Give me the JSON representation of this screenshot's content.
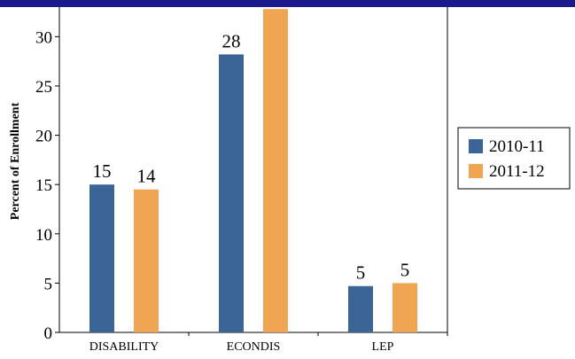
{
  "chart_data": {
    "type": "bar",
    "title": "",
    "xlabel": "",
    "ylabel": "Percent of Enrollment",
    "categories": [
      "DISABILITY",
      "ECONDIS",
      "LEP"
    ],
    "series": [
      {
        "name": "2010-11",
        "color": "#3a6596",
        "values": [
          15,
          28.2,
          4.7
        ],
        "labels": [
          "15",
          "28",
          "5"
        ]
      },
      {
        "name": "2011-12",
        "color": "#f0a552",
        "values": [
          14.5,
          32.8,
          5.0
        ],
        "labels": [
          "14",
          "",
          "5"
        ]
      }
    ],
    "ylim": [
      0,
      33
    ],
    "yticks": [
      0,
      5,
      10,
      15,
      20,
      25,
      30
    ],
    "grid": false,
    "legend_position": "right",
    "header_bar_color": "#1a1a8c"
  }
}
